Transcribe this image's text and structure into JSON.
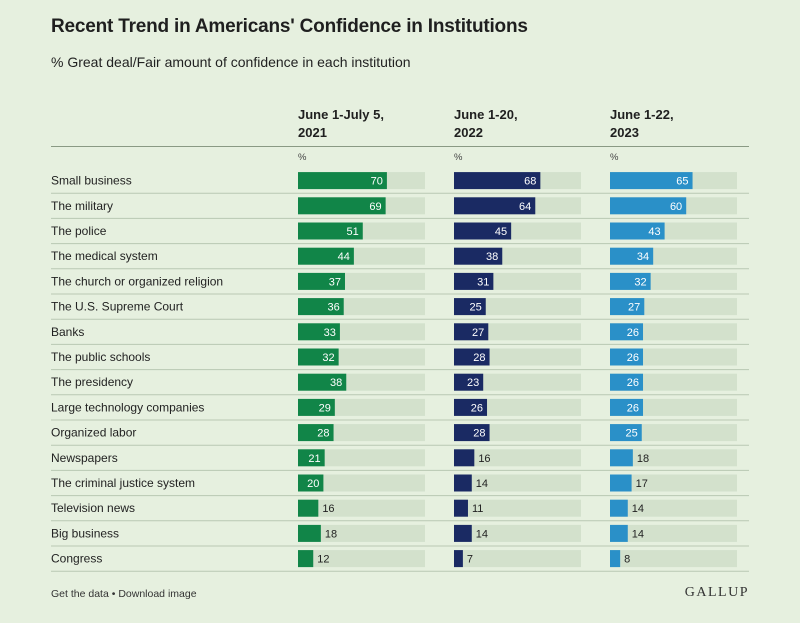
{
  "title": "Recent Trend in Americans' Confidence in Institutions",
  "subtitle": "% Great deal/Fair amount of confidence in each institution",
  "footer": {
    "get_data": "Get the data",
    "separator": "•",
    "download": "Download image"
  },
  "logo_text": "GALLUP",
  "unit_label": "%",
  "colors": {
    "background": "#e6f0df",
    "track": "#d3e1cc",
    "series_2021": "#118548",
    "series_2022": "#1a2a63",
    "series_2023": "#2a90c8"
  },
  "chart_data": {
    "type": "bar",
    "orientation": "horizontal",
    "xlim": [
      0,
      100
    ],
    "categories": [
      "Small business",
      "The military",
      "The police",
      "The medical system",
      "The church or organized religion",
      "The U.S. Supreme Court",
      "Banks",
      "The public schools",
      "The presidency",
      "Large technology companies",
      "Organized labor",
      "Newspapers",
      "The criminal justice system",
      "Television news",
      "Big business",
      "Congress"
    ],
    "series": [
      {
        "name": "June 1-July 5, 2021",
        "name_lines": [
          "June 1-July 5,",
          "2021"
        ],
        "values": [
          70,
          69,
          51,
          44,
          37,
          36,
          33,
          32,
          38,
          29,
          28,
          21,
          20,
          16,
          18,
          12
        ]
      },
      {
        "name": "June 1-20, 2022",
        "name_lines": [
          "June 1-20,",
          "2022"
        ],
        "values": [
          68,
          64,
          45,
          38,
          31,
          25,
          27,
          28,
          23,
          26,
          28,
          16,
          14,
          11,
          14,
          7
        ]
      },
      {
        "name": "June 1-22, 2023",
        "name_lines": [
          "June 1-22,",
          "2023"
        ],
        "values": [
          65,
          60,
          43,
          34,
          32,
          27,
          26,
          26,
          26,
          26,
          25,
          18,
          17,
          14,
          14,
          8
        ]
      }
    ]
  }
}
